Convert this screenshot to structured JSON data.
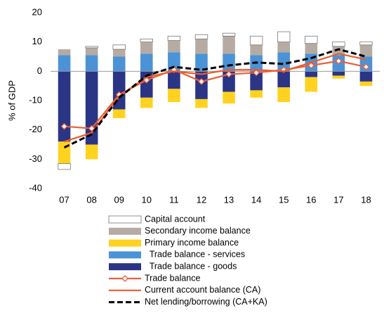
{
  "chart_data": {
    "type": "bar",
    "y_label": "% of GDP",
    "categories": [
      "07",
      "08",
      "09",
      "10",
      "11",
      "12",
      "13",
      "14",
      "15",
      "16",
      "17",
      "18"
    ],
    "ylim": [
      -40,
      20
    ],
    "yticks": [
      20,
      10,
      0,
      -10,
      -20,
      -30,
      -40
    ],
    "series": [
      {
        "name": "Capital account",
        "type": "bar",
        "color": "#ffffff",
        "values": [
          -2,
          0.5,
          1.5,
          1,
          1.5,
          1.5,
          1,
          3,
          3.5,
          2.5,
          1.5,
          1
        ]
      },
      {
        "name": "Secondary income balance",
        "type": "bar",
        "color": "#b5aba2",
        "values": [
          2,
          2.5,
          2.5,
          4,
          4,
          5,
          6,
          3.5,
          3.5,
          3.5,
          3,
          4
        ]
      },
      {
        "name": "Primary income balance",
        "type": "bar",
        "color": "#ffd21f",
        "values": [
          -7.5,
          -5,
          -3,
          -3.5,
          -4.5,
          -3,
          -4,
          -2.5,
          -5,
          -5,
          -1,
          -1.5
        ]
      },
      {
        "name": "  Trade balance - services",
        "type": "bar",
        "color": "#4b93d6",
        "values": [
          5.5,
          5.5,
          5,
          6,
          6.5,
          6,
          6,
          5.5,
          6.5,
          6,
          5.5,
          5
        ]
      },
      {
        "name": "  Trade balance - goods",
        "type": "bar",
        "color": "#2b3585",
        "values": [
          -24,
          -25,
          -13,
          -9,
          -6,
          -9.5,
          -7,
          -6.5,
          -5.5,
          -2,
          -1.5,
          -3.5
        ]
      },
      {
        "name": "Trade balance",
        "type": "line",
        "marker": "diamond",
        "color": "#e8603c",
        "values": [
          -18.8,
          -19.5,
          -8,
          -3,
          0.5,
          -3.5,
          -1,
          -0.5,
          0.5,
          2,
          3.5,
          1.5
        ]
      },
      {
        "name": "Current account balance (CA)",
        "type": "line",
        "color": "#ee5a2a",
        "values": [
          -24,
          -21,
          -8.5,
          -2,
          0,
          -1,
          0.5,
          0.5,
          0,
          3,
          6,
          4
        ]
      },
      {
        "name": "Net lending/borrowing (CA+KA)",
        "type": "line",
        "dashed": true,
        "color": "#000000",
        "values": [
          -26,
          -21.5,
          -9,
          -1.5,
          1.5,
          0.5,
          2,
          3,
          2.5,
          4.5,
          7.5,
          5
        ]
      }
    ]
  }
}
